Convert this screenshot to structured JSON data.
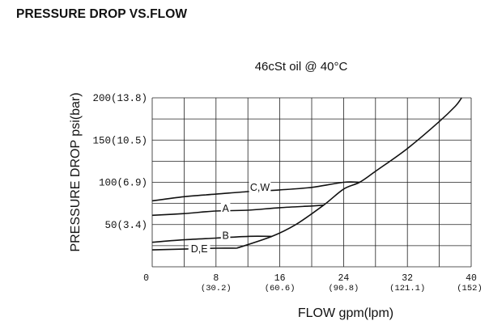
{
  "page_title": "PRESSURE DROP VS.FLOW",
  "chart_data": {
    "type": "line",
    "title": "46cSt oil @ 40°C",
    "xlabel": "FLOW gpm(lpm)",
    "ylabel": "PRESSURE DROP psi(bar)",
    "xlim": [
      0,
      40
    ],
    "ylim": [
      0,
      200
    ],
    "grid": true,
    "x_ticks": [
      {
        "value": 0,
        "label": "0",
        "sub": ""
      },
      {
        "value": 8,
        "label": "8",
        "sub": "(30.2)"
      },
      {
        "value": 16,
        "label": "16",
        "sub": "(60.6)"
      },
      {
        "value": 24,
        "label": "24",
        "sub": "(90.8)"
      },
      {
        "value": 32,
        "label": "32",
        "sub": "(121.1)"
      },
      {
        "value": 40,
        "label": "40",
        "sub": "(152)"
      }
    ],
    "y_ticks": [
      {
        "value": 50,
        "label": "50(3.4)"
      },
      {
        "value": 100,
        "label": "100(6.9)"
      },
      {
        "value": 150,
        "label": "150(10.5)"
      },
      {
        "value": 200,
        "label": "200(13.8)"
      }
    ],
    "series": [
      {
        "name": "C,W",
        "label_at": [
          13.5,
          92
        ],
        "points": [
          [
            0,
            78
          ],
          [
            4,
            83
          ],
          [
            8,
            86
          ],
          [
            12,
            89
          ],
          [
            16,
            91
          ],
          [
            20,
            94
          ],
          [
            24,
            100
          ],
          [
            26,
            100
          ]
        ]
      },
      {
        "name": "A",
        "label_at": [
          9.2,
          67
        ],
        "points": [
          [
            0,
            61
          ],
          [
            4,
            63
          ],
          [
            8,
            66
          ],
          [
            12,
            67
          ],
          [
            16,
            70
          ],
          [
            20,
            72
          ],
          [
            21.5,
            73
          ]
        ]
      },
      {
        "name": "B",
        "label_at": [
          9.2,
          35
        ],
        "points": [
          [
            0,
            29
          ],
          [
            4,
            32
          ],
          [
            8,
            34
          ],
          [
            12,
            36
          ],
          [
            15,
            36
          ]
        ]
      },
      {
        "name": "D,E",
        "label_at": [
          5.9,
          19
        ],
        "points": [
          [
            0,
            20
          ],
          [
            4,
            21
          ],
          [
            8,
            22
          ],
          [
            10.6,
            22
          ]
        ]
      },
      {
        "name": "",
        "label_at": null,
        "points": [
          [
            10.6,
            22
          ],
          [
            15,
            36
          ],
          [
            18,
            50
          ],
          [
            21.5,
            73
          ],
          [
            24,
            92
          ],
          [
            26,
            100
          ],
          [
            28,
            113
          ],
          [
            32,
            140
          ],
          [
            36,
            172
          ],
          [
            38,
            190
          ],
          [
            38.8,
            200
          ]
        ]
      }
    ]
  }
}
